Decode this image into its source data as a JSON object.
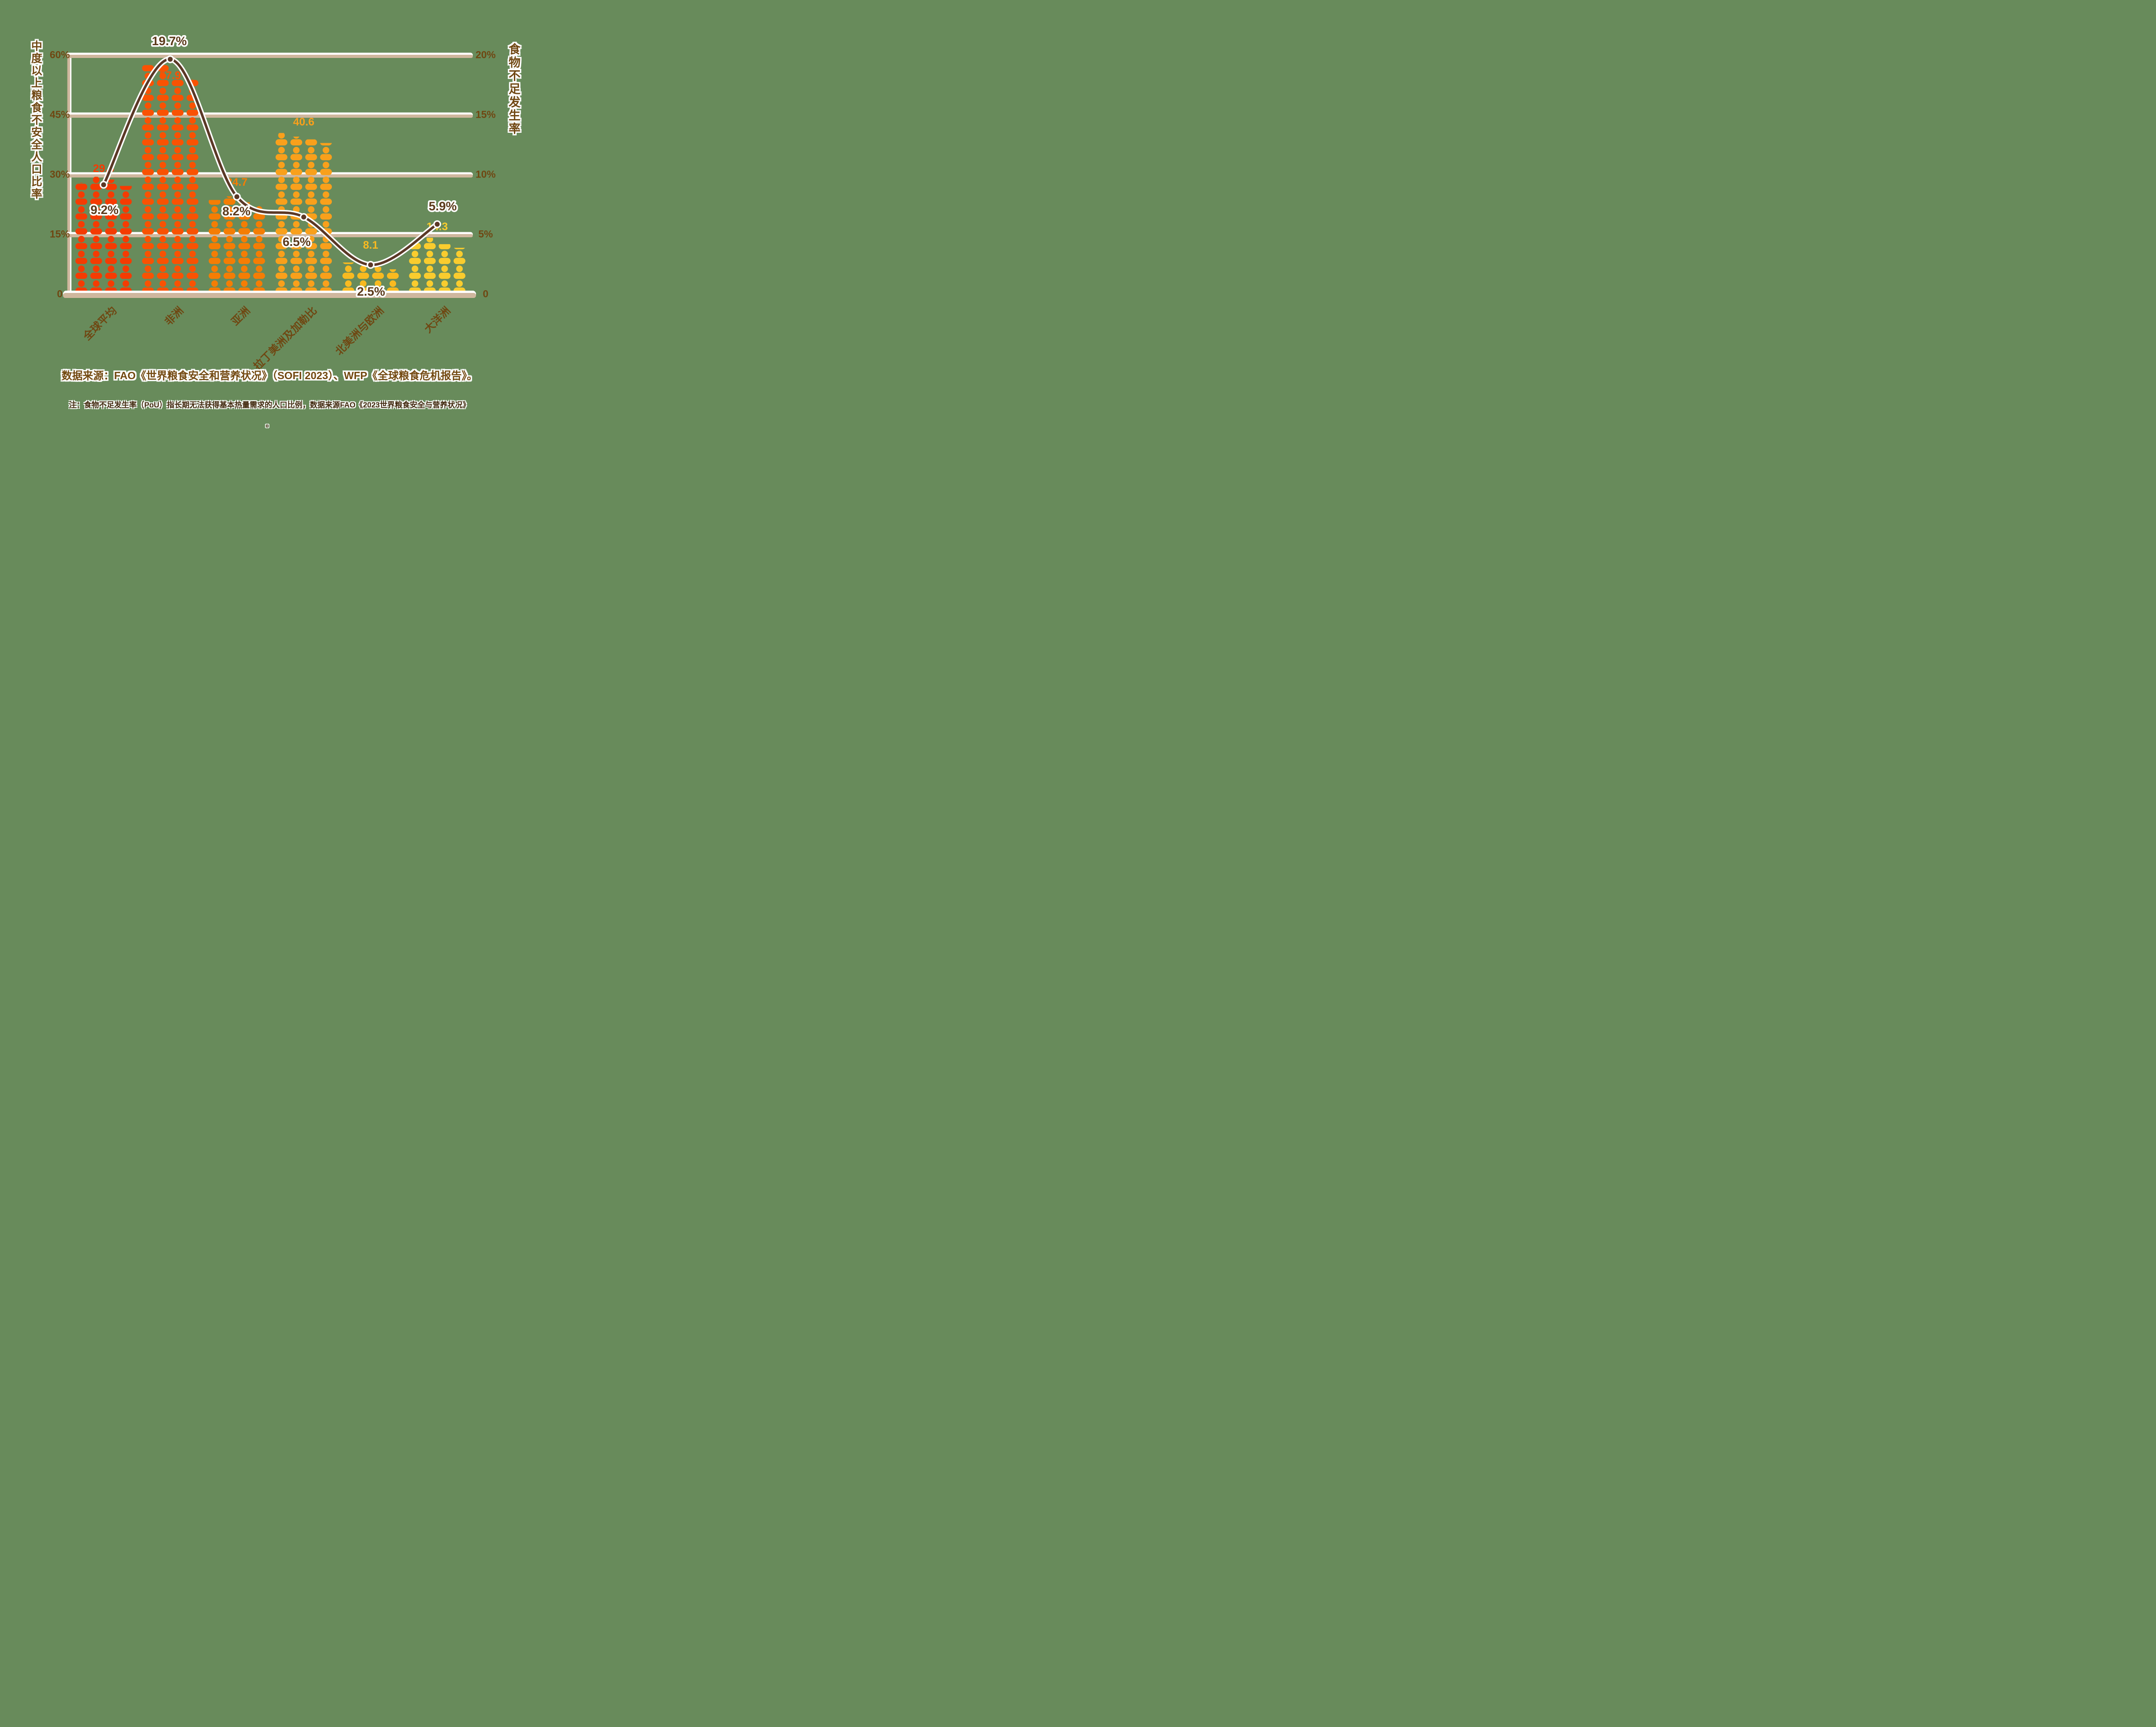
{
  "chart_data": {
    "type": "bar",
    "subtype": "pictogram-bars-with-line",
    "categories": [
      "全球平均",
      "非洲",
      "亚洲",
      "拉丁美洲及加勒比",
      "北美洲与欧洲",
      "大洋洲"
    ],
    "series": [
      {
        "name": "中度以上粮食不安全人口比率",
        "axis": "left",
        "type": "pictogram-bar",
        "values": [
          29.6,
          57.9,
          24.7,
          40.6,
          8.1,
          14.3
        ],
        "labels": [
          "29.6",
          "57.9",
          "24.7",
          "40.6",
          "8.1",
          "14.3"
        ]
      },
      {
        "name": "食物不足发生率",
        "axis": "right",
        "type": "line",
        "values": [
          9.2,
          19.7,
          8.2,
          6.5,
          2.5,
          5.9
        ],
        "labels": [
          "9.2%",
          "19.7%",
          "8.2%",
          "6.5%",
          "2.5%",
          "5.9%"
        ]
      }
    ],
    "left_axis": {
      "title": "中度以上粮食不安全人口比率",
      "range": [
        0,
        60
      ],
      "ticks": [
        "60%",
        "45%",
        "30%",
        "15%",
        "0"
      ]
    },
    "right_axis": {
      "title": "食物不足发生率",
      "range": [
        0,
        20
      ],
      "ticks": [
        "20%",
        "15%",
        "10%",
        "5%",
        "0"
      ]
    },
    "grid": true,
    "legend_position": "none"
  },
  "footer": {
    "source": "数据来源：FAO《世界粮食安全和营养状况》（SOFI 2023）、WFP《全球粮食危机报告》。",
    "note": "注：食物不足发生率（PoU）指长期无法获得基本热量需求的人口比例，数据来源FAO《2023世界粮食安全与营养状况》",
    "note2": "。"
  },
  "colors": {
    "background": "#688B5B",
    "grid": "#CFB79E",
    "grid_highlight": "#FFFFFF",
    "line": "#5B3826",
    "line_casing": "#FFFFFF",
    "marker": "#5B3826",
    "tick_text": "#6F4712",
    "pou_label_text": "#5C3A1B",
    "note_text": "#41290E",
    "source_text": "#72480F",
    "bars": [
      "#F53B02",
      "#F95203",
      "#F57D04",
      "#F9A01B",
      "#F9BA20",
      "#F9CC2E"
    ]
  }
}
